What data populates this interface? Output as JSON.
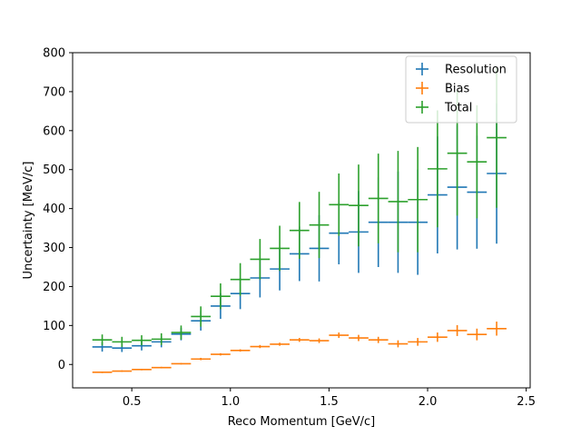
{
  "chart_data": {
    "type": "scatter",
    "xlabel": "Reco Momentum [GeV/c]",
    "ylabel": "Uncertainty [MeV/c]",
    "xlim": [
      0.2,
      2.52
    ],
    "ylim": [
      -60,
      800
    ],
    "xticks": [
      "0.5",
      "1.0",
      "1.5",
      "2.0",
      "2.5"
    ],
    "yticks": [
      "0",
      "100",
      "200",
      "300",
      "400",
      "500",
      "600",
      "700",
      "800"
    ],
    "legend_position": "top-right",
    "series": [
      {
        "name": "Resolution",
        "color": "#1f77b4",
        "x": [
          0.35,
          0.45,
          0.55,
          0.65,
          0.75,
          0.85,
          0.95,
          1.05,
          1.15,
          1.25,
          1.35,
          1.45,
          1.55,
          1.65,
          1.75,
          1.85,
          1.95,
          2.05,
          2.15,
          2.25,
          2.35
        ],
        "y": [
          45,
          42,
          48,
          58,
          78,
          112,
          150,
          182,
          222,
          245,
          284,
          298,
          337,
          340,
          365,
          365,
          365,
          435,
          455,
          442,
          490
        ],
        "yerr": [
          12,
          10,
          12,
          14,
          16,
          25,
          33,
          40,
          50,
          55,
          70,
          85,
          80,
          105,
          115,
          130,
          135,
          150,
          160,
          145,
          180
        ],
        "xerr": 0.05
      },
      {
        "name": "Bias",
        "color": "#ff7f0e",
        "x": [
          0.35,
          0.45,
          0.55,
          0.65,
          0.75,
          0.85,
          0.95,
          1.05,
          1.15,
          1.25,
          1.35,
          1.45,
          1.55,
          1.65,
          1.75,
          1.85,
          1.95,
          2.05,
          2.15,
          2.25,
          2.35
        ],
        "y": [
          -20,
          -17,
          -13,
          -8,
          2,
          14,
          26,
          36,
          46,
          52,
          63,
          61,
          75,
          68,
          63,
          53,
          58,
          70,
          87,
          77,
          92
        ],
        "yerr": [
          2,
          2,
          2,
          2,
          2,
          3,
          3,
          3,
          4,
          4,
          5,
          6,
          7,
          8,
          8,
          9,
          10,
          12,
          14,
          15,
          18
        ],
        "xerr": 0.05
      },
      {
        "name": "Total",
        "color": "#2ca02c",
        "x": [
          0.35,
          0.45,
          0.55,
          0.65,
          0.75,
          0.85,
          0.95,
          1.05,
          1.15,
          1.25,
          1.35,
          1.45,
          1.55,
          1.65,
          1.75,
          1.85,
          1.95,
          2.05,
          2.15,
          2.25,
          2.35
        ],
        "y": [
          63,
          58,
          62,
          65,
          82,
          123,
          175,
          218,
          270,
          298,
          344,
          358,
          410,
          408,
          426,
          418,
          423,
          502,
          542,
          520,
          582
        ],
        "yerr": [
          14,
          13,
          13,
          15,
          18,
          26,
          33,
          42,
          52,
          58,
          73,
          85,
          80,
          105,
          115,
          130,
          135,
          150,
          160,
          145,
          180
        ],
        "xerr": 0.05
      }
    ]
  }
}
